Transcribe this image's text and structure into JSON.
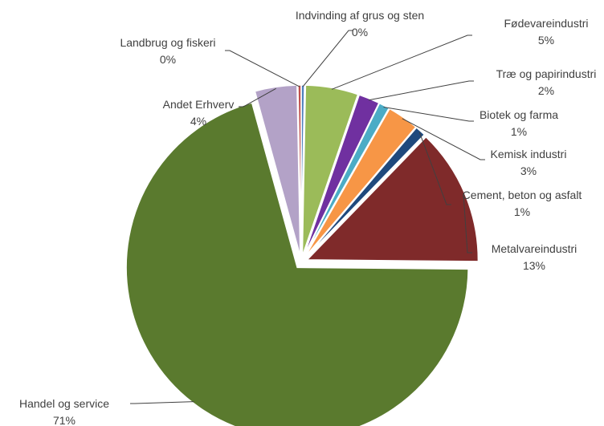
{
  "chart_data": {
    "type": "pie",
    "title": "",
    "start_angle_deg": 0,
    "direction": "clockwise",
    "exploded": true,
    "data_labels": "category-and-percent",
    "slices": [
      {
        "label": "Indvinding af grus og sten",
        "value": 0.3,
        "pct_label": "0%",
        "color": "#4f81bd"
      },
      {
        "label": "Fødevareindustri",
        "value": 5,
        "pct_label": "5%",
        "color": "#9bbb59"
      },
      {
        "label": "Træ og papirindustri",
        "value": 2,
        "pct_label": "2%",
        "color": "#7030a0"
      },
      {
        "label": "Biotek og farma",
        "value": 1,
        "pct_label": "1%",
        "color": "#4bacc6"
      },
      {
        "label": "Kemisk industri",
        "value": 3,
        "pct_label": "3%",
        "color": "#f79646"
      },
      {
        "label": "Cement, beton og asfalt",
        "value": 1,
        "pct_label": "1%",
        "color": "#1f497d"
      },
      {
        "label": "Metalvareindustri",
        "value": 13,
        "pct_label": "13%",
        "color": "#7f2a2a"
      },
      {
        "label": "Handel og service",
        "value": 71,
        "pct_label": "71%",
        "color": "#5a7a2e"
      },
      {
        "label": "Andet Erhverv",
        "value": 4,
        "pct_label": "4%",
        "color": "#b3a2c7"
      },
      {
        "label": "Landbrug og fiskeri",
        "value": 0.3,
        "pct_label": "0%",
        "color": "#c0504d"
      }
    ]
  }
}
